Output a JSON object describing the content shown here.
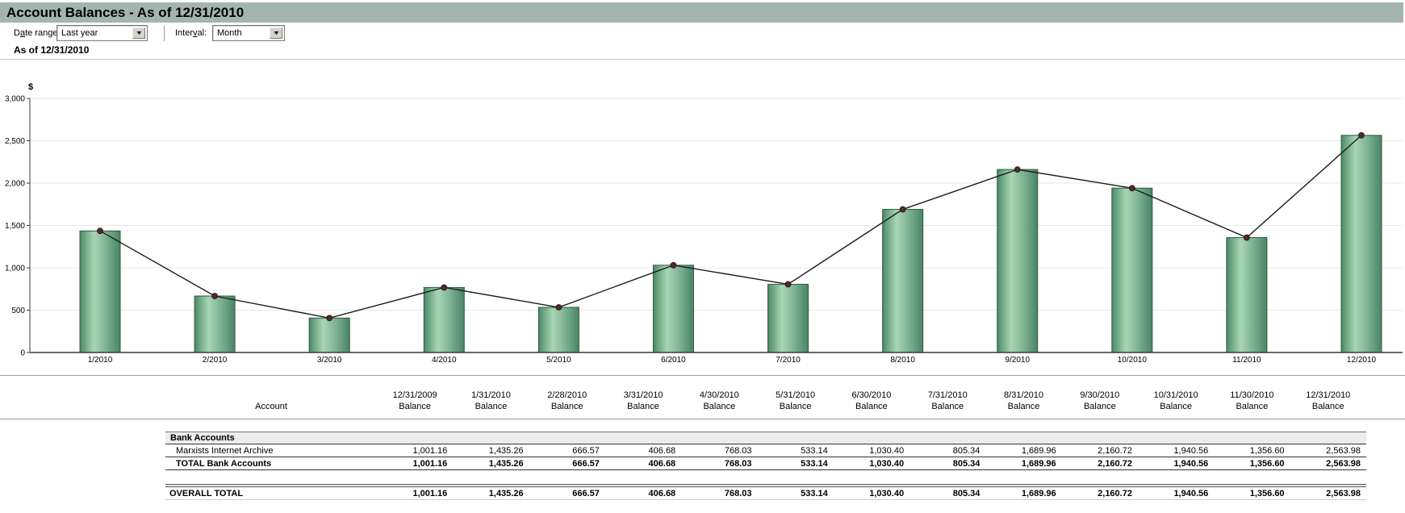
{
  "header": {
    "title": "Account Balances - As of 12/31/2010"
  },
  "toolbar": {
    "date_range": {
      "label_pre": "D",
      "label_accel": "a",
      "label_post": "te range:",
      "value": "Last year"
    },
    "interval": {
      "label_pre": "Inter",
      "label_accel": "v",
      "label_post": "al:",
      "value": "Month"
    },
    "dropdown_arrow_glyph": "▼"
  },
  "subtitle": "As of 12/31/2010",
  "chart_data": {
    "type": "bar",
    "title": "",
    "categories": [
      "1/2010",
      "2/2010",
      "3/2010",
      "4/2010",
      "5/2010",
      "6/2010",
      "7/2010",
      "8/2010",
      "9/2010",
      "10/2010",
      "11/2010",
      "12/2010"
    ],
    "series": [
      {
        "name": "Total Bank Accounts (bars)",
        "type": "bar",
        "values": [
          1435.26,
          666.57,
          406.68,
          768.03,
          533.14,
          1030.4,
          805.34,
          1689.96,
          2160.72,
          1940.56,
          1356.6,
          2563.98
        ]
      },
      {
        "name": "Total Bank Accounts (line)",
        "type": "line",
        "values": [
          1435.26,
          666.57,
          406.68,
          768.03,
          533.14,
          1030.4,
          805.34,
          1689.96,
          2160.72,
          1940.56,
          1356.6,
          2563.98
        ]
      }
    ],
    "xlabel": "",
    "ylabel": "$",
    "ylim": [
      0,
      3000
    ],
    "ytick_step": 500,
    "ytick_labels": [
      "0",
      "500",
      "1,000",
      "1,500",
      "2,000",
      "2,500",
      "3,000"
    ],
    "grid": true,
    "legend_position": "none",
    "colors": {
      "bar_fill_dark": "#4a8464",
      "bar_fill_mid": "#5f9a78",
      "bar_fill_light": "#a9d6b4",
      "bar_fill_mid2": "#7db294",
      "bar_border": "#2d5c44",
      "line": "#1c1c1c",
      "marker": "#4f2c2d",
      "marker_border": "#2a1617",
      "grid": "#e7e7e7",
      "axis": "#3a3a3a"
    }
  },
  "table": {
    "account_header": "Account",
    "balance_sub_label": "Balance",
    "column_dates": [
      "12/31/2009",
      "1/31/2010",
      "2/28/2010",
      "3/31/2010",
      "4/30/2010",
      "5/31/2010",
      "6/30/2010",
      "7/31/2010",
      "8/31/2010",
      "9/30/2010",
      "10/31/2010",
      "11/30/2010",
      "12/31/2010"
    ],
    "section_header": "Bank Accounts",
    "rows": [
      {
        "name": "Marxists Internet Archive",
        "bold": false,
        "values": [
          "1,001.16",
          "1,435.26",
          "666.57",
          "406.68",
          "768.03",
          "533.14",
          "1,030.40",
          "805.34",
          "1,689.96",
          "2,160.72",
          "1,940.56",
          "1,356.60",
          "2,563.98"
        ]
      },
      {
        "name": "TOTAL Bank Accounts",
        "bold": true,
        "values": [
          "1,001.16",
          "1,435.26",
          "666.57",
          "406.68",
          "768.03",
          "533.14",
          "1,030.40",
          "805.34",
          "1,689.96",
          "2,160.72",
          "1,940.56",
          "1,356.60",
          "2,563.98"
        ]
      }
    ],
    "overall_row": {
      "name": "OVERALL TOTAL",
      "values": [
        "1,001.16",
        "1,435.26",
        "666.57",
        "406.68",
        "768.03",
        "533.14",
        "1,030.40",
        "805.34",
        "1,689.96",
        "2,160.72",
        "1,940.56",
        "1,356.60",
        "2,563.98"
      ]
    }
  },
  "colors": {
    "titlebar_bg": "#a3b5ae",
    "section_row_bg": "#ececec"
  }
}
